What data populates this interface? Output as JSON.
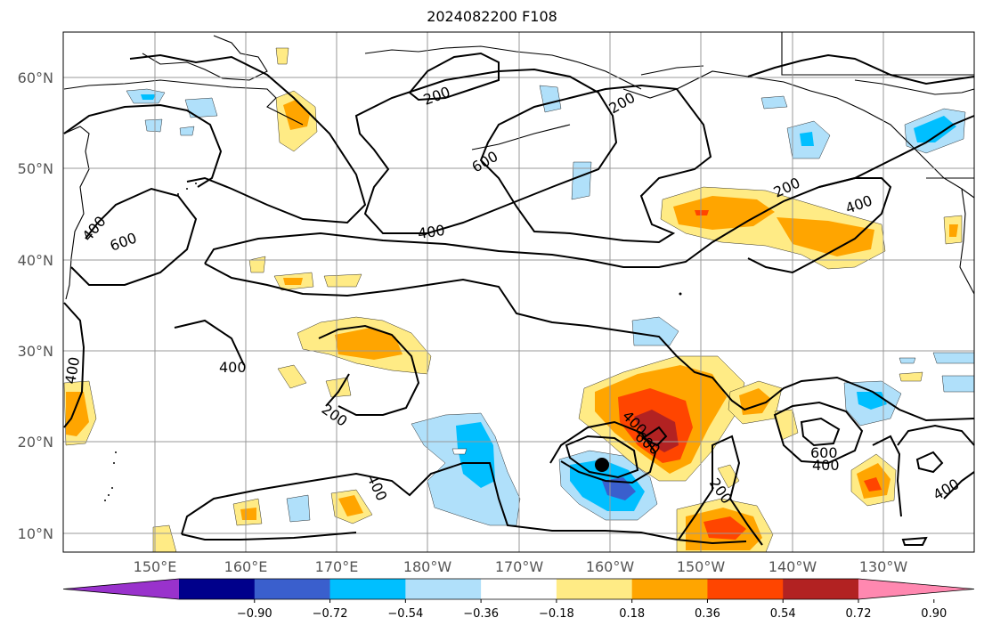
{
  "title": "2024082200 F108",
  "map": {
    "lat_labels": [
      "60°N",
      "50°N",
      "40°N",
      "30°N",
      "20°N",
      "10°N"
    ],
    "lon_labels": [
      "150°E",
      "160°E",
      "170°E",
      "180°W",
      "170°W",
      "160°W",
      "150°W",
      "140°W",
      "130°W"
    ],
    "contour_labels": [
      "200",
      "200",
      "200",
      "200",
      "200",
      "400",
      "400",
      "400",
      "400",
      "400",
      "400",
      "400",
      "400",
      "600",
      "600",
      "600",
      "600",
      "400"
    ],
    "marker": "storm-center"
  },
  "colorbar": {
    "ticks": [
      "−0.90",
      "−0.72",
      "−0.54",
      "−0.36",
      "−0.18",
      "0.18",
      "0.36",
      "0.54",
      "0.72",
      "0.90"
    ],
    "colors": [
      "#9932cc",
      "#00008b",
      "#3a5fcd",
      "#00bfff",
      "#b0e0fa",
      "#ffffff",
      "#ffeb85",
      "#ffa500",
      "#ff4500",
      "#b22222",
      "#ff88b0"
    ]
  }
}
